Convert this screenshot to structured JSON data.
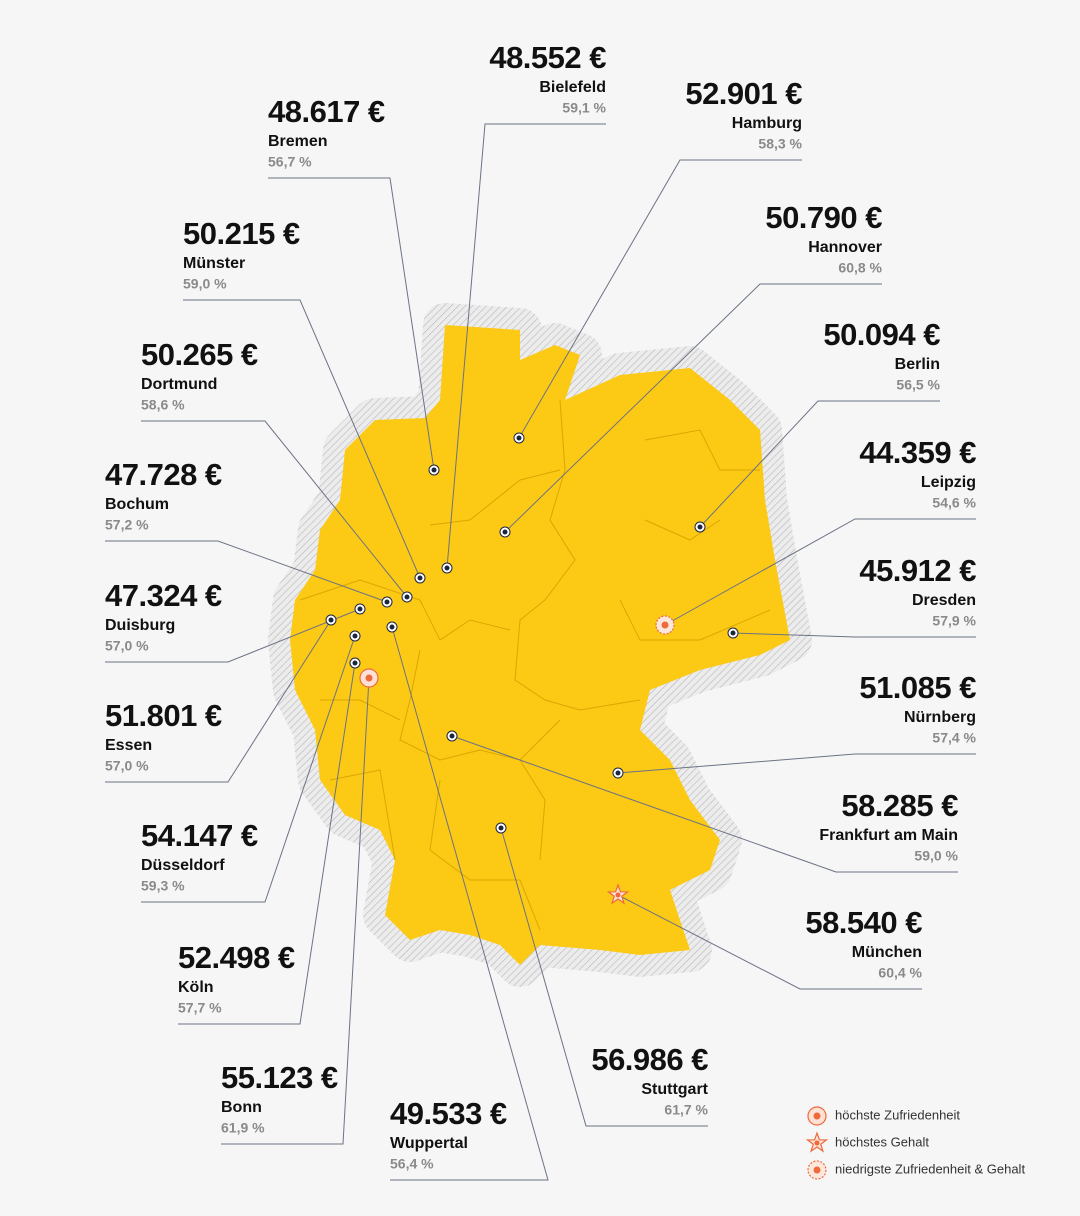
{
  "cities": [
    {
      "salary": "48.552 €",
      "name": "Bielefeld",
      "satisfaction": "59,1 %"
    },
    {
      "salary": "52.901 €",
      "name": "Hamburg",
      "satisfaction": "58,3 %"
    },
    {
      "salary": "48.617 €",
      "name": "Bremen",
      "satisfaction": "56,7 %"
    },
    {
      "salary": "50.790 €",
      "name": "Hannover",
      "satisfaction": "60,8 %"
    },
    {
      "salary": "50.215 €",
      "name": "Münster",
      "satisfaction": "59,0 %"
    },
    {
      "salary": "50.094 €",
      "name": "Berlin",
      "satisfaction": "56,5 %"
    },
    {
      "salary": "50.265 €",
      "name": "Dortmund",
      "satisfaction": "58,6 %"
    },
    {
      "salary": "44.359 €",
      "name": "Leipzig",
      "satisfaction": "54,6 %"
    },
    {
      "salary": "47.728 €",
      "name": "Bochum",
      "satisfaction": "57,2 %"
    },
    {
      "salary": "45.912 €",
      "name": "Dresden",
      "satisfaction": "57,9 %"
    },
    {
      "salary": "47.324 €",
      "name": "Duisburg",
      "satisfaction": "57,0 %"
    },
    {
      "salary": "51.085 €",
      "name": "Nürnberg",
      "satisfaction": "57,4 %"
    },
    {
      "salary": "51.801 €",
      "name": "Essen",
      "satisfaction": "57,0 %"
    },
    {
      "salary": "58.285 €",
      "name": "Frankfurt am Main",
      "satisfaction": "59,0 %"
    },
    {
      "salary": "54.147 €",
      "name": "Düsseldorf",
      "satisfaction": "59,3 %"
    },
    {
      "salary": "58.540 €",
      "name": "München",
      "satisfaction": "60,4 %"
    },
    {
      "salary": "52.498 €",
      "name": "Köln",
      "satisfaction": "57,7 %"
    },
    {
      "salary": "56.986 €",
      "name": "Stuttgart",
      "satisfaction": "61,7 %"
    },
    {
      "salary": "55.123 €",
      "name": "Bonn",
      "satisfaction": "61,9 %"
    },
    {
      "salary": "49.533 €",
      "name": "Wuppertal",
      "satisfaction": "56,4 %"
    }
  ],
  "legend": [
    "höchste Zufriedenheit",
    "höchstes Gehalt",
    "niedrigste Zufriedenheit & Gehalt"
  ]
}
